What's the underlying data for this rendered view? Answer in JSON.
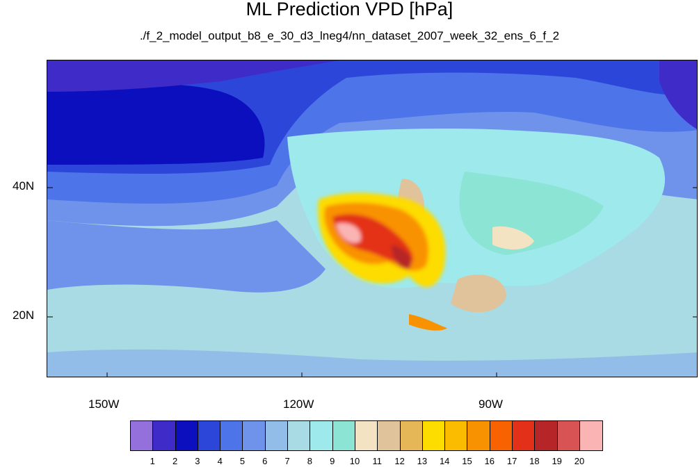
{
  "title": "ML Prediction VPD [hPa]",
  "subtitle": "./f_2_model_output_b8_e_30_d3_lneg4/nn_dataset_2007_week_32_ens_6_f_2",
  "map": {
    "lat_labels": [
      "40N",
      "20N"
    ],
    "lon_labels": [
      "150W",
      "120W",
      "90W"
    ]
  },
  "colorbar": {
    "labels": [
      "1",
      "2",
      "3",
      "4",
      "5",
      "6",
      "7",
      "8",
      "9",
      "10",
      "11",
      "12",
      "13",
      "14",
      "15",
      "16",
      "17",
      "18",
      "19",
      "20"
    ],
    "colors": [
      "#9370db",
      "#3f2cc8",
      "#0b0fbe",
      "#2c46da",
      "#4d74e8",
      "#6f92ea",
      "#93bde9",
      "#a8dbe3",
      "#9de9ec",
      "#8be4d4",
      "#f3e3c3",
      "#e0c39a",
      "#e6b756",
      "#fddc00",
      "#fbbc00",
      "#f99200",
      "#f86200",
      "#e33119",
      "#b62628",
      "#d85454",
      "#fbb4b4"
    ]
  }
}
